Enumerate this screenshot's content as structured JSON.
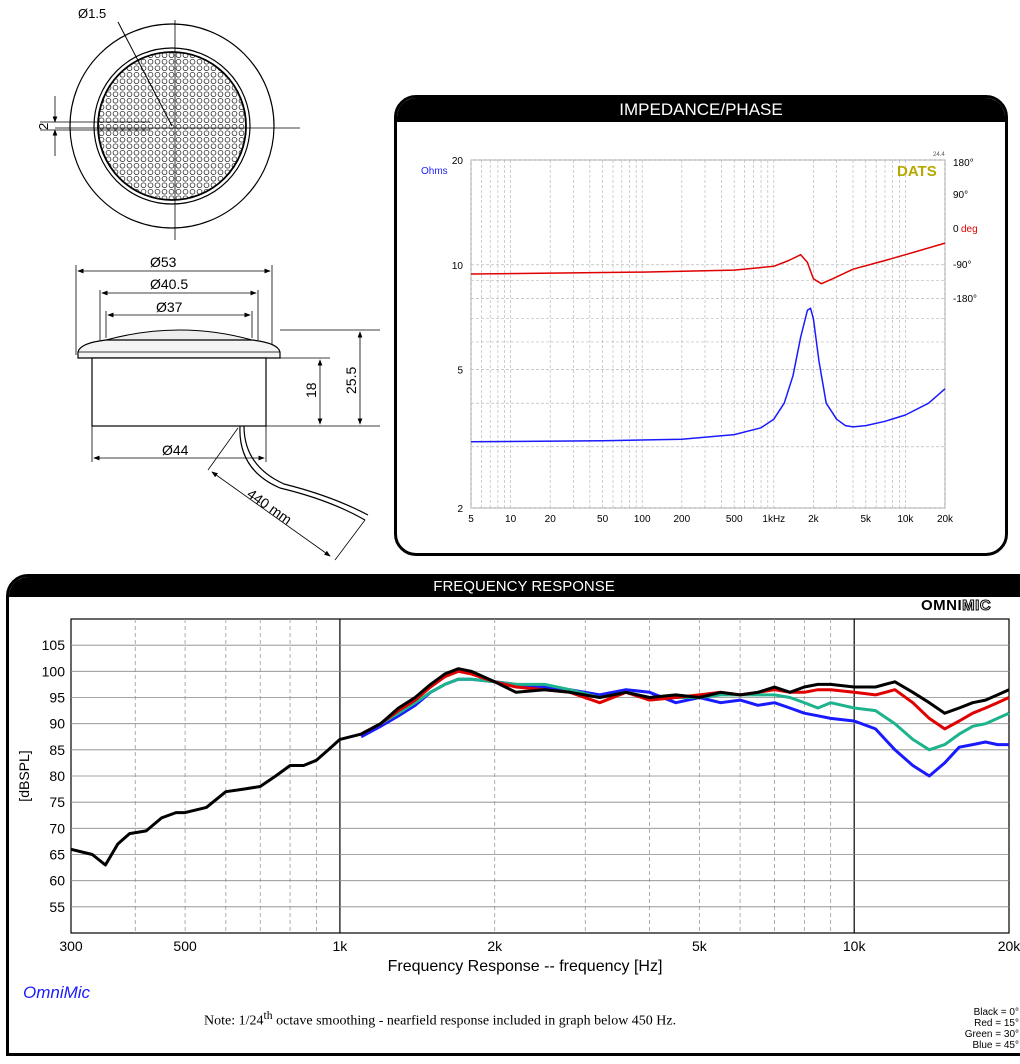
{
  "drawing": {
    "dim_d1_5": "Ø1.5",
    "dim_2": "2",
    "dim_d53": "Ø53",
    "dim_d40_5": "Ø40.5",
    "dim_d37": "Ø37",
    "dim_18": "18",
    "dim_25_5": "25.5",
    "dim_d44": "Ø44",
    "dim_440mm": "440 mm"
  },
  "impedance_panel": {
    "title": "IMPEDANCE/PHASE",
    "ohms_label": "Ohms",
    "brand": "DATS",
    "version": "24.4",
    "deg_label": "deg",
    "phase_labels": [
      "180°",
      "90°",
      "0",
      "-90°",
      "-180°"
    ]
  },
  "fr_panel": {
    "title": "FREQUENCY RESPONSE",
    "brand_a": "OMNI",
    "brand_b": "MIC",
    "software": "OmniMic",
    "note_pre": "Note:  1/24",
    "note_sup": "th",
    "note_post": " octave smoothing - nearfield response included in graph below 450 Hz.",
    "legend": [
      "Black = 0°",
      "Red = 15°",
      "Green = 30°",
      "Blue = 45°"
    ]
  },
  "chart_data": [
    {
      "type": "line",
      "title": "IMPEDANCE/PHASE",
      "ylabel": "Ohms",
      "y2label": "deg",
      "xscale": "log",
      "xlim": [
        5,
        20000
      ],
      "ylim": [
        2,
        20
      ],
      "y2lim": [
        -180,
        180
      ],
      "yscale": "log",
      "xticks": [
        "5",
        "10",
        "20",
        "50",
        "100",
        "200",
        "500",
        "1kHz",
        "2k",
        "5k",
        "10k",
        "20k"
      ],
      "yticks": [
        "2",
        "5",
        "10",
        "20"
      ],
      "grid": true,
      "series": [
        {
          "color": "#1a1aff",
          "axis": "left",
          "x": [
            5,
            50,
            200,
            500,
            800,
            1000,
            1200,
            1400,
            1600,
            1800,
            1900,
            2000,
            2200,
            2500,
            3000,
            3500,
            4000,
            5000,
            7000,
            10000,
            15000,
            20000
          ],
          "y": [
            3.1,
            3.12,
            3.15,
            3.25,
            3.4,
            3.6,
            4.0,
            4.8,
            6.2,
            7.4,
            7.5,
            7.0,
            5.3,
            4.0,
            3.6,
            3.45,
            3.42,
            3.45,
            3.55,
            3.7,
            4.0,
            4.4
          ]
        },
        {
          "color": "#e00000",
          "axis": "right",
          "x": [
            5,
            100,
            500,
            1000,
            1300,
            1600,
            1800,
            2000,
            2300,
            2800,
            4000,
            7000,
            10000,
            20000
          ],
          "y": [
            0,
            2,
            4,
            8,
            14,
            20,
            12,
            -5,
            -10,
            -5,
            5,
            14,
            20,
            32
          ]
        }
      ]
    },
    {
      "type": "line",
      "title": "FREQUENCY RESPONSE",
      "xlabel": "Frequency Response -- frequency [Hz]",
      "ylabel": "[dBSPL]",
      "xscale": "log",
      "xlim": [
        300,
        20000
      ],
      "ylim": [
        50,
        110
      ],
      "xticks": [
        "300",
        "500",
        "1k",
        "2k",
        "5k",
        "10k",
        "20k"
      ],
      "yticks": [
        "55",
        "60",
        "65",
        "70",
        "75",
        "80",
        "85",
        "90",
        "95",
        "100",
        "105"
      ],
      "grid": true,
      "series": [
        {
          "color": "#000000",
          "x": [
            300,
            330,
            350,
            370,
            390,
            420,
            450,
            480,
            500,
            550,
            600,
            650,
            700,
            750,
            800,
            850,
            900,
            950,
            1000,
            1100,
            1200,
            1300,
            1400,
            1500,
            1600,
            1700,
            1800,
            2000,
            2200,
            2500,
            2800,
            3200,
            3600,
            4000,
            4500,
            5000,
            5500,
            6000,
            6500,
            7000,
            7500,
            8000,
            8500,
            9000,
            10000,
            11000,
            12000,
            13000,
            14000,
            15000,
            16000,
            17000,
            18000,
            19000,
            20000
          ],
          "y": [
            66,
            65,
            63,
            67,
            69,
            69.5,
            72,
            73,
            73,
            74,
            77,
            77.5,
            78,
            80,
            82,
            82,
            83,
            85,
            87,
            88,
            90,
            93,
            95,
            97.5,
            99.5,
            100.5,
            100,
            98,
            96,
            96.5,
            96,
            95,
            96,
            95,
            95.5,
            95,
            96,
            95.5,
            96,
            97,
            96,
            97,
            97.5,
            97.5,
            97,
            97,
            98,
            96,
            94,
            92,
            93,
            94,
            94.5,
            95.5,
            96.5
          ]
        },
        {
          "color": "#e00000",
          "x": [
            1100,
            1200,
            1300,
            1400,
            1500,
            1600,
            1700,
            1800,
            2000,
            2200,
            2500,
            2800,
            3200,
            3600,
            4000,
            4500,
            5000,
            5500,
            6000,
            6500,
            7000,
            7500,
            8000,
            8500,
            9000,
            10000,
            11000,
            12000,
            13000,
            14000,
            15000,
            16000,
            17000,
            18000,
            19000,
            20000
          ],
          "y": [
            88,
            90,
            92.5,
            94.5,
            97,
            99,
            100,
            99.5,
            98,
            97,
            96.5,
            96,
            94,
            96,
            94.5,
            95,
            95.5,
            96,
            95.5,
            96,
            96.5,
            96,
            96,
            96.5,
            96.5,
            96,
            95.5,
            96.5,
            94,
            91,
            89,
            90.5,
            92,
            93,
            94,
            95
          ]
        },
        {
          "color": "#1db38c",
          "x": [
            1100,
            1200,
            1300,
            1400,
            1500,
            1600,
            1700,
            1800,
            2000,
            2200,
            2500,
            2800,
            3200,
            3600,
            4000,
            4500,
            5000,
            5500,
            6000,
            6500,
            7000,
            7500,
            8000,
            8500,
            9000,
            10000,
            11000,
            12000,
            13000,
            14000,
            15000,
            16000,
            17000,
            18000,
            19000,
            20000
          ],
          "y": [
            88,
            90,
            92,
            94,
            96,
            97.5,
            98.5,
            98.5,
            98,
            97.5,
            97.5,
            96.5,
            95,
            96,
            95,
            95,
            95,
            95.5,
            95.5,
            95.5,
            95.5,
            95,
            94,
            93,
            94,
            93,
            92.5,
            90,
            87,
            85,
            86,
            88,
            89.5,
            90,
            91,
            92
          ]
        },
        {
          "color": "#1a1aff",
          "x": [
            1100,
            1200,
            1300,
            1400,
            1500,
            1600,
            1700,
            1800,
            2000,
            2200,
            2500,
            2800,
            3200,
            3600,
            4000,
            4500,
            5000,
            5500,
            6000,
            6500,
            7000,
            7500,
            8000,
            8500,
            9000,
            10000,
            11000,
            12000,
            13000,
            14000,
            15000,
            16000,
            17000,
            18000,
            19000,
            20000
          ],
          "y": [
            87.5,
            89.5,
            91.5,
            93.5,
            96,
            97.5,
            98.5,
            98.5,
            98,
            97.5,
            97,
            96.5,
            95.5,
            96.5,
            96,
            94,
            95,
            94,
            94.5,
            93.5,
            94,
            93,
            92,
            91.5,
            91,
            90.5,
            89,
            85,
            82,
            80,
            82.5,
            85.5,
            86,
            86.5,
            86,
            86
          ]
        }
      ]
    }
  ]
}
